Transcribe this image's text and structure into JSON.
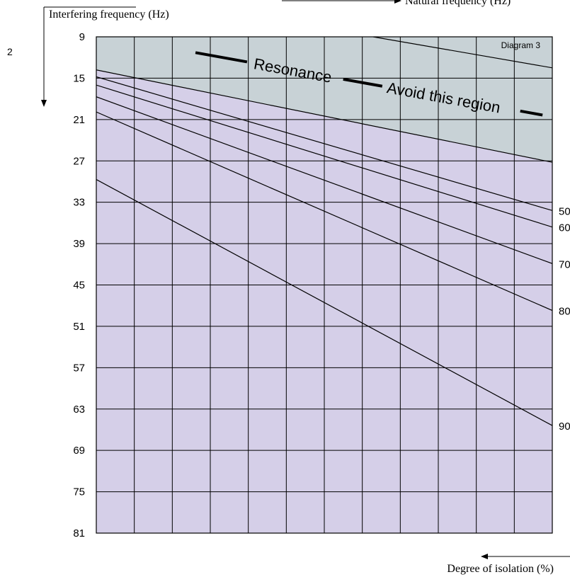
{
  "page_marker": "2",
  "chart_data": {
    "type": "line",
    "title": "",
    "panel_label": "Diagram 3",
    "y_axis_title": "Interfering frequency (Hz)",
    "top_axis_title": "Natural frequency (Hz)",
    "bottom_axis_title": "Degree of isolation (%)",
    "y_ticks": [
      "9",
      "15",
      "21",
      "27",
      "33",
      "39",
      "45",
      "51",
      "57",
      "63",
      "69",
      "75",
      "81"
    ],
    "ylim": [
      9,
      81
    ],
    "x_gridlines": 11,
    "resonance_label": "Resonance",
    "avoid_label": "Avoid this region",
    "region_colors": {
      "resonance": "#c8d2d6",
      "chart": "#d5cfe8"
    },
    "resonance_line": {
      "start": 9.0,
      "end": 13.5
    },
    "resonance_boundary": {
      "start": 13.8,
      "end": 27.2
    },
    "series": [
      {
        "name": "50",
        "start": 14.8,
        "end": 34.2
      },
      {
        "name": "60",
        "start": 16.0,
        "end": 36.6
      },
      {
        "name": "70",
        "start": 17.7,
        "end": 41.9
      },
      {
        "name": "80",
        "start": 19.9,
        "end": 48.7
      },
      {
        "name": "90",
        "start": 29.7,
        "end": 65.4
      }
    ]
  }
}
